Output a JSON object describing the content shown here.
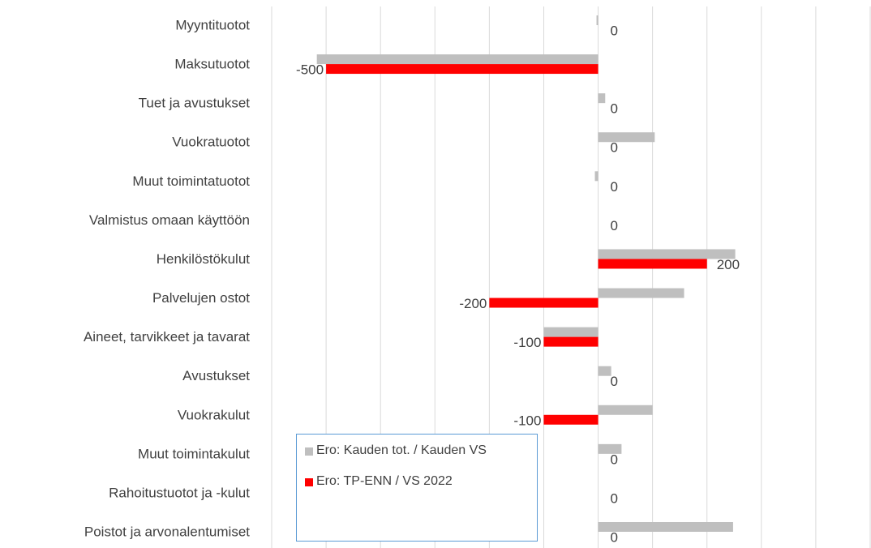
{
  "chart_data": {
    "type": "hbar",
    "categories": [
      "Myyntituotot",
      "Maksutuotot",
      "Tuet ja avustukset",
      "Vuokratuotot",
      "Muut toimintatuotot",
      "Valmistus omaan käyttöön",
      "Henkilöstökulut",
      "Palvelujen ostot",
      "Aineet, tarvikkeet ja tavarat",
      "Avustukset",
      "Vuokrakulut",
      "Muut toimintakulut",
      "Rahoitustuotot ja -kulut",
      "Poistot ja arvonalentumiset"
    ],
    "series": [
      {
        "name": "Ero: Kauden tot. / Kauden VS",
        "color": "#bfbfbf",
        "values": [
          -3,
          -517,
          13,
          104,
          -6,
          0,
          252,
          158,
          -100,
          24,
          100,
          43,
          0,
          248
        ]
      },
      {
        "name": "Ero: TP-ENN / VS 2022",
        "color": "#ff0000",
        "values": [
          0,
          -500,
          0,
          0,
          0,
          0,
          200,
          -200,
          -100,
          0,
          -100,
          0,
          0,
          0
        ],
        "data_labels": true
      }
    ],
    "xlim": [
      -600,
      500
    ],
    "xticks": [
      -600,
      -500,
      -400,
      -300,
      -200,
      -100,
      0,
      100,
      200,
      300,
      400,
      500
    ],
    "grid": true
  }
}
